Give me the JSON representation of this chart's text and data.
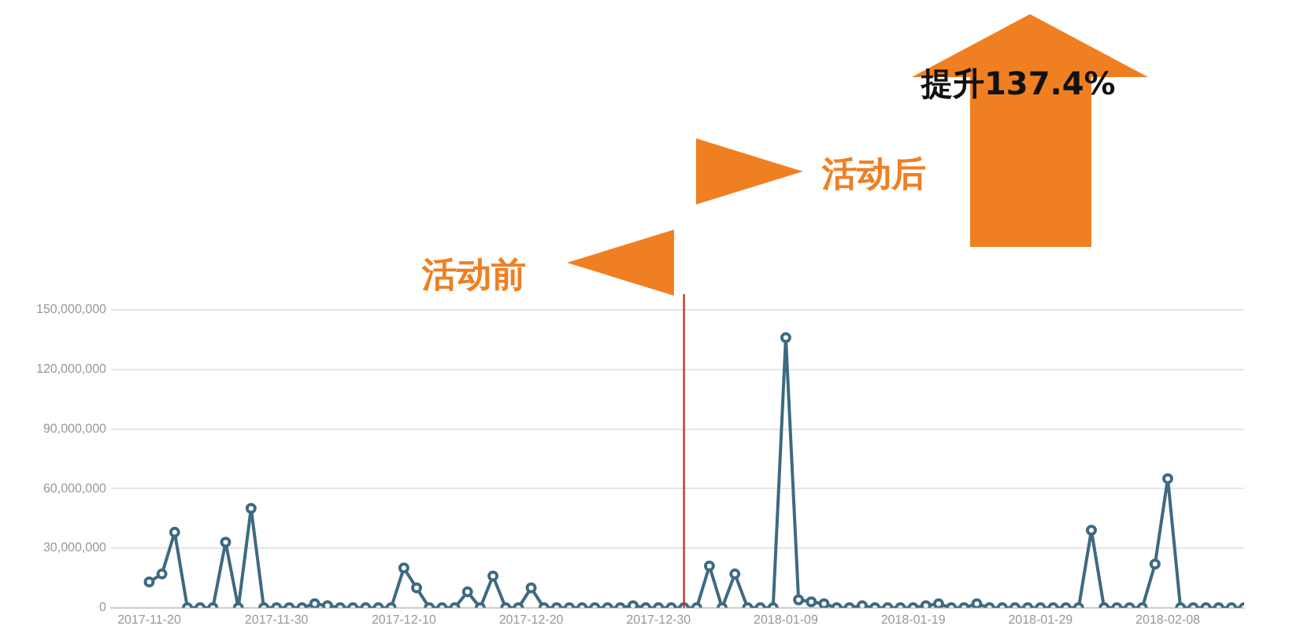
{
  "chart_data": {
    "type": "line",
    "color": "#3d6a80",
    "x": [
      "2017-11-20",
      "2017-11-21",
      "2017-11-22",
      "2017-11-23",
      "2017-11-24",
      "2017-11-25",
      "2017-11-26",
      "2017-11-27",
      "2017-11-28",
      "2017-11-29",
      "2017-11-30",
      "2017-12-01",
      "2017-12-02",
      "2017-12-03",
      "2017-12-04",
      "2017-12-05",
      "2017-12-06",
      "2017-12-07",
      "2017-12-08",
      "2017-12-09",
      "2017-12-10",
      "2017-12-11",
      "2017-12-12",
      "2017-12-13",
      "2017-12-14",
      "2017-12-15",
      "2017-12-16",
      "2017-12-17",
      "2017-12-18",
      "2017-12-19",
      "2017-12-20",
      "2017-12-21",
      "2017-12-22",
      "2017-12-23",
      "2017-12-24",
      "2017-12-25",
      "2017-12-26",
      "2017-12-27",
      "2017-12-28",
      "2017-12-29",
      "2017-12-30",
      "2017-12-31",
      "2018-01-01",
      "2018-01-02",
      "2018-01-03",
      "2018-01-04",
      "2018-01-05",
      "2018-01-06",
      "2018-01-07",
      "2018-01-08",
      "2018-01-09",
      "2018-01-10",
      "2018-01-11",
      "2018-01-12",
      "2018-01-13",
      "2018-01-14",
      "2018-01-15",
      "2018-01-16",
      "2018-01-17",
      "2018-01-18",
      "2018-01-19",
      "2018-01-20",
      "2018-01-21",
      "2018-01-22",
      "2018-01-23",
      "2018-01-24",
      "2018-01-25",
      "2018-01-26",
      "2018-01-27",
      "2018-01-28",
      "2018-01-29",
      "2018-01-30",
      "2018-01-31",
      "2018-02-01",
      "2018-02-02",
      "2018-02-03",
      "2018-02-04",
      "2018-02-05",
      "2018-02-06",
      "2018-02-07",
      "2018-02-08",
      "2018-02-09",
      "2018-02-10",
      "2018-02-11",
      "2018-02-12",
      "2018-02-13",
      "2018-02-14"
    ],
    "values": [
      13000000,
      17000000,
      38000000,
      0,
      0,
      0,
      33000000,
      0,
      50000000,
      0,
      0,
      0,
      0,
      2000000,
      1000000,
      0,
      0,
      0,
      0,
      0,
      20000000,
      10000000,
      0,
      0,
      0,
      8000000,
      0,
      16000000,
      0,
      0,
      10000000,
      0,
      0,
      0,
      0,
      0,
      0,
      0,
      1000000,
      0,
      0,
      0,
      0,
      0,
      21000000,
      0,
      17000000,
      0,
      0,
      0,
      136000000,
      4000000,
      3000000,
      2000000,
      0,
      0,
      1000000,
      0,
      0,
      0,
      0,
      1000000,
      2000000,
      0,
      0,
      2000000,
      0,
      0,
      0,
      0,
      0,
      0,
      0,
      0,
      39000000,
      0,
      0,
      0,
      0,
      22000000,
      65000000,
      0,
      0,
      0,
      0,
      0,
      0
    ],
    "xlim": [
      "2017-11-17",
      "2018-02-14"
    ],
    "xticks": [
      "2017-11-20",
      "2017-11-30",
      "2017-12-10",
      "2017-12-20",
      "2017-12-30",
      "2018-01-09",
      "2018-01-19",
      "2018-01-29",
      "2018-02-08"
    ],
    "ylim": [
      0,
      150000000
    ],
    "yticks": [
      {
        "value": 0,
        "label": "0"
      },
      {
        "value": 30000000,
        "label": "30,000,000"
      },
      {
        "value": 60000000,
        "label": "60,000,000"
      },
      {
        "value": 90000000,
        "label": "90,000,000"
      },
      {
        "value": 120000000,
        "label": "120,000,000"
      },
      {
        "value": 150000000,
        "label": "150,000,000"
      }
    ],
    "grid": "y",
    "marker": "circle",
    "line_style": "solid",
    "legend": false,
    "ref_lines": [
      {
        "axis": "x",
        "value": "2018-01-01",
        "color": "#c0392b"
      }
    ],
    "annotations": [
      "活动前",
      "活动后",
      "提升137.4%"
    ]
  }
}
